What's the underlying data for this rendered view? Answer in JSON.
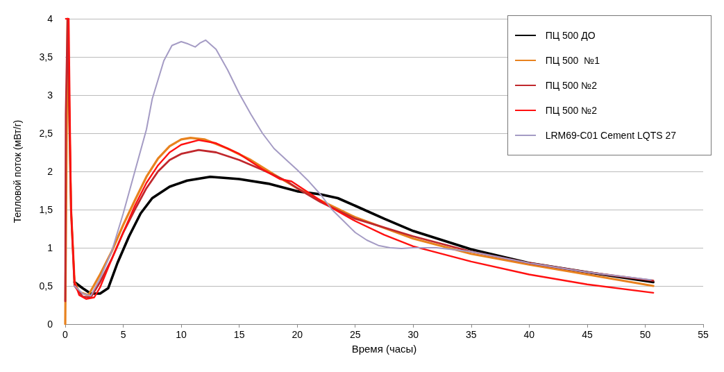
{
  "chart_data": {
    "type": "line",
    "xlabel": "Время (часы)",
    "ylabel": "Тепловой поток (мВт/г)",
    "xlim": [
      0,
      55
    ],
    "xticks": [
      0,
      5,
      10,
      15,
      20,
      25,
      30,
      35,
      40,
      45,
      50,
      55
    ],
    "ylim": [
      0,
      4
    ],
    "yticks": [
      0,
      {
        "value": 0.5,
        "label": "0,5"
      },
      1,
      {
        "value": 1.5,
        "label": "1,5"
      },
      2,
      {
        "value": 2.5,
        "label": "2,5"
      },
      3,
      {
        "value": 3.5,
        "label": "3,5"
      },
      4
    ],
    "grid": "y",
    "legend": "top right",
    "marker": "none",
    "line_style": "solid",
    "series": [
      {
        "name": "ПЦ 500 ДО",
        "color": "#000000",
        "x": [
          0.8,
          1.5,
          2.2,
          3,
          3.7,
          4.5,
          5.5,
          6.5,
          7.5,
          9,
          10.5,
          12.5,
          15,
          17.5,
          20,
          22,
          23.5,
          25,
          27.5,
          30,
          35,
          40,
          45,
          50.7
        ],
        "values": [
          0.55,
          0.47,
          0.4,
          0.4,
          0.47,
          0.8,
          1.15,
          1.45,
          1.65,
          1.8,
          1.88,
          1.93,
          1.9,
          1.84,
          1.74,
          1.7,
          1.65,
          1.55,
          1.38,
          1.22,
          0.98,
          0.8,
          0.68,
          0.55
        ]
      },
      {
        "name": "ПЦ 500  №1",
        "color": "#e8821e",
        "x": [
          0,
          0.2,
          0.5,
          0.8,
          1.2,
          2,
          3,
          4,
          5,
          6,
          7,
          8,
          9,
          10,
          10.8,
          12,
          14,
          16,
          18,
          20,
          22,
          25,
          30,
          35,
          40,
          45,
          50.7
        ],
        "values": [
          0,
          4,
          1.5,
          0.55,
          0.42,
          0.38,
          0.65,
          0.95,
          1.3,
          1.62,
          1.93,
          2.17,
          2.33,
          2.42,
          2.44,
          2.42,
          2.3,
          2.15,
          1.96,
          1.78,
          1.62,
          1.4,
          1.12,
          0.92,
          0.78,
          0.65,
          0.5
        ]
      },
      {
        "name": "ПЦ 500 №2",
        "color": "#c0282d",
        "x": [
          0,
          0.05,
          0.2,
          0.5,
          0.8,
          1.5,
          2.2,
          3,
          4,
          5,
          6,
          7,
          8,
          9,
          10,
          11.5,
          13,
          15,
          17,
          19,
          20,
          22,
          25,
          30,
          35,
          40,
          45,
          50.7
        ],
        "values": [
          0.3,
          2.75,
          4,
          1.5,
          0.5,
          0.36,
          0.35,
          0.55,
          0.85,
          1.2,
          1.5,
          1.78,
          2,
          2.15,
          2.23,
          2.28,
          2.25,
          2.15,
          2.02,
          1.88,
          1.78,
          1.6,
          1.38,
          1.15,
          0.95,
          0.8,
          0.68,
          0.57
        ]
      },
      {
        "name": "ПЦ 500 №2",
        "color": "#ff1010",
        "x": [
          0.05,
          0.3,
          0.5,
          0.8,
          1.2,
          1.8,
          2.5,
          3,
          4,
          5,
          6,
          7,
          8,
          9,
          10,
          11.5,
          13,
          15,
          17,
          18.5,
          19.5,
          21,
          23,
          25,
          27.5,
          30,
          35,
          40,
          45,
          50.7
        ],
        "values": [
          4,
          4,
          1.5,
          0.55,
          0.38,
          0.33,
          0.35,
          0.48,
          0.85,
          1.2,
          1.55,
          1.85,
          2.08,
          2.25,
          2.35,
          2.41,
          2.37,
          2.23,
          2.03,
          1.9,
          1.87,
          1.72,
          1.52,
          1.35,
          1.17,
          1.02,
          0.82,
          0.65,
          0.52,
          0.41
        ]
      },
      {
        "name": "LRM69-C01 Cement LQTS 27",
        "color": "#a49bc4",
        "x": [
          0.8,
          1.5,
          2.2,
          3,
          4,
          5,
          6,
          7,
          7.5,
          8.5,
          9.2,
          10,
          10.6,
          11.2,
          11.6,
          12.1,
          13,
          14,
          15,
          16,
          17,
          18,
          19,
          20,
          21,
          22,
          23,
          24,
          25,
          26,
          27,
          28,
          29,
          30,
          32,
          35,
          40,
          45,
          50.5
        ],
        "values": [
          0.5,
          0.4,
          0.37,
          0.6,
          0.95,
          1.45,
          2,
          2.55,
          2.95,
          3.45,
          3.65,
          3.7,
          3.67,
          3.63,
          3.68,
          3.72,
          3.6,
          3.33,
          3.02,
          2.75,
          2.5,
          2.3,
          2.16,
          2.02,
          1.87,
          1.7,
          1.5,
          1.35,
          1.2,
          1.1,
          1.03,
          1,
          0.99,
          1,
          1,
          0.95,
          0.8,
          0.68,
          0.58
        ]
      }
    ]
  }
}
